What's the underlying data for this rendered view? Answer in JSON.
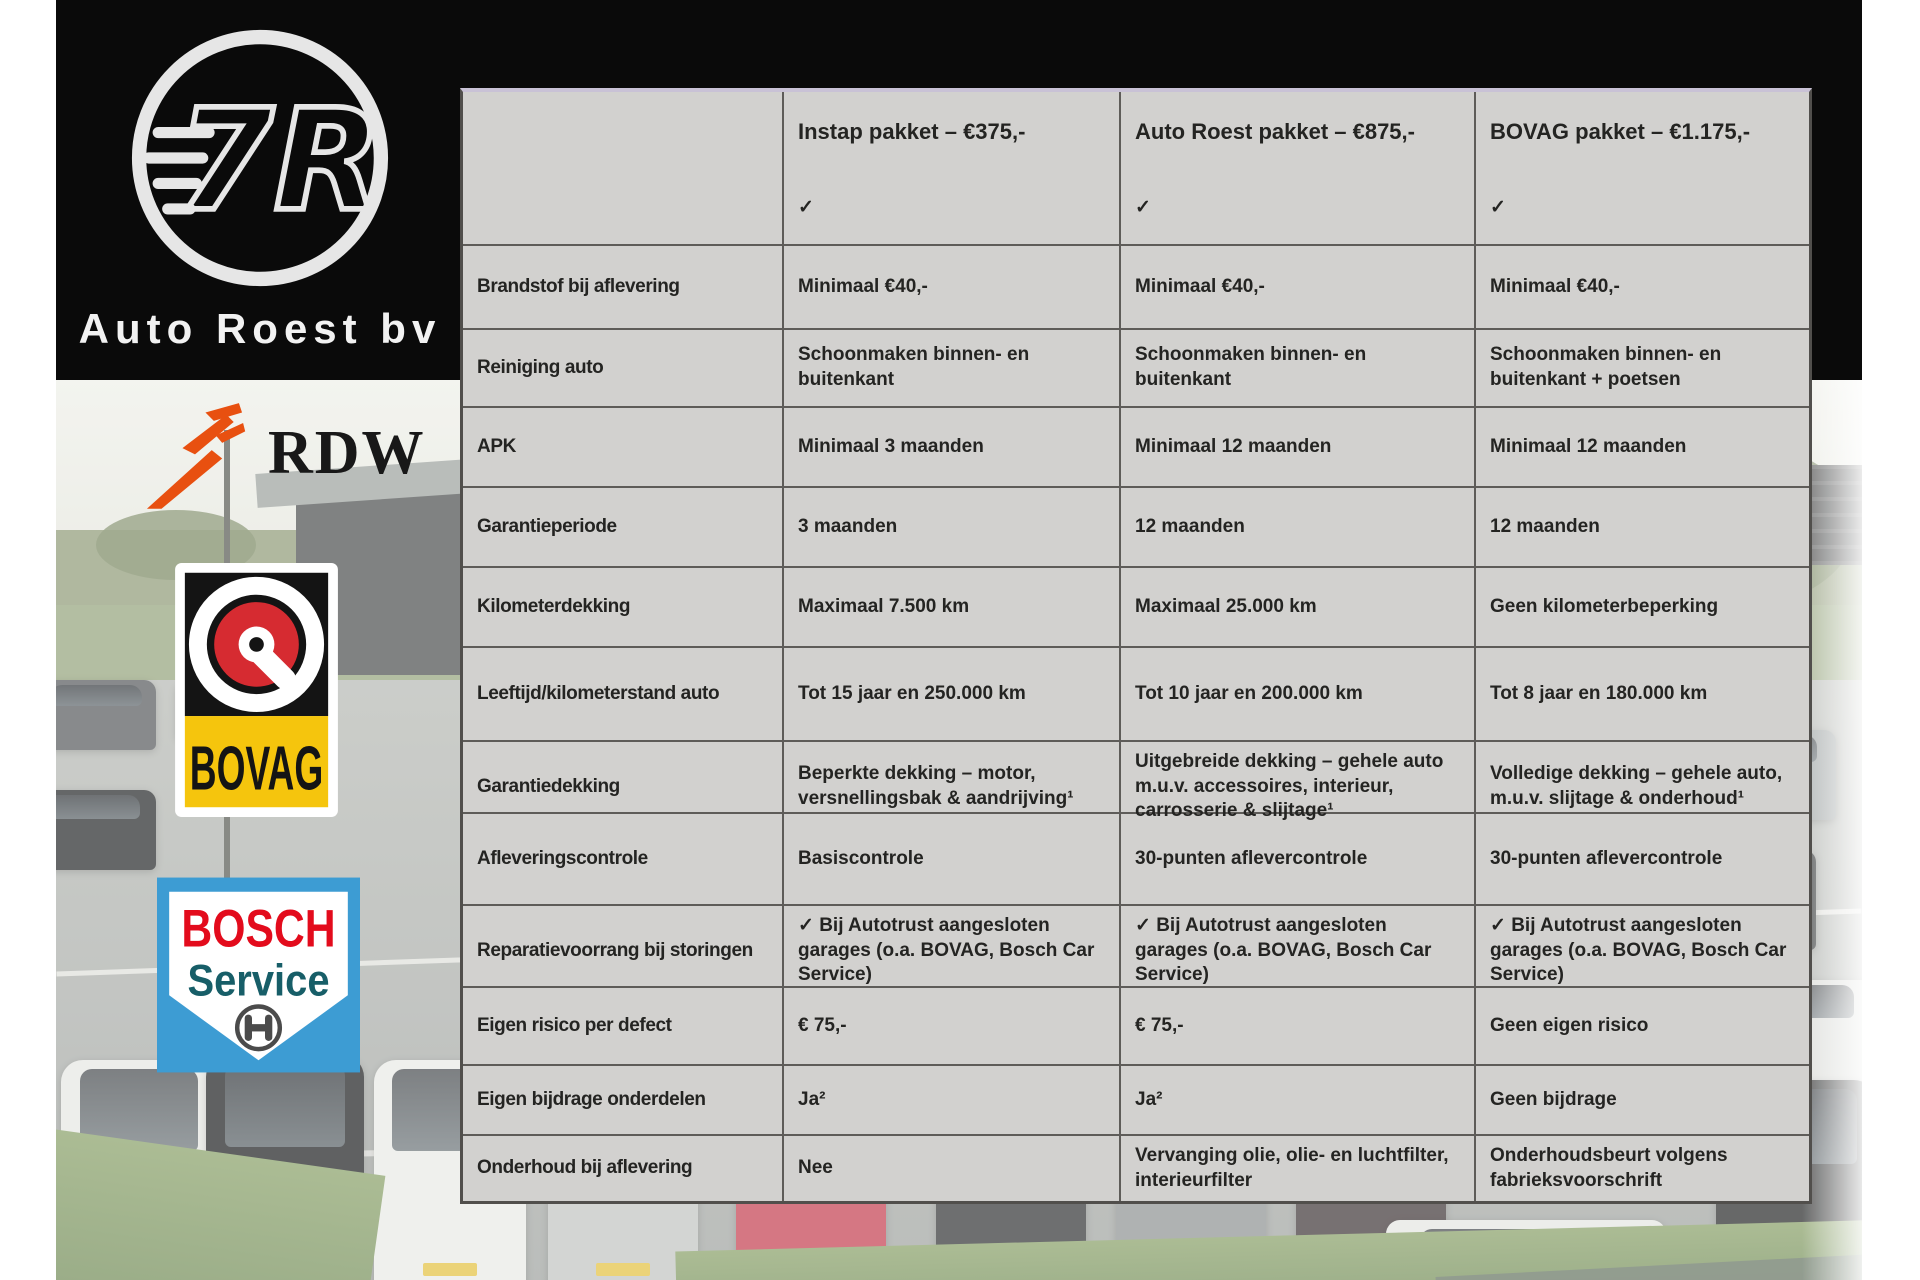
{
  "brand": {
    "name": "Auto Roest bv",
    "monogram": "7R"
  },
  "logos": {
    "rdw": {
      "text": "RDW",
      "orange": "#e85010"
    },
    "bovag": {
      "text": "BOVAG",
      "yellow": "#f5c50d",
      "red": "#d62b31"
    },
    "bosch": {
      "line1": "BOSCH",
      "line2": "Service",
      "red": "#e30b1c",
      "blue": "#3d9cd3",
      "teal": "#175e68"
    }
  },
  "colors": {
    "table_bg": "#d2d1cf",
    "table_border": "#5e5c59",
    "band": "#0a0a0a"
  },
  "table": {
    "columns": [
      "",
      "Instap pakket – €375,-",
      "Auto Roest pakket – €875,-",
      "BOVAG pakket – €1.175,-"
    ],
    "rows": [
      {
        "label": "",
        "values": [
          "✓",
          "✓",
          "✓"
        ]
      },
      {
        "label": "Brandstof bij aflevering",
        "values": [
          "Minimaal €40,-",
          "Minimaal €40,-",
          "Minimaal €40,-"
        ]
      },
      {
        "label": "Reiniging auto",
        "values": [
          "Schoonmaken binnen- en buitenkant",
          "Schoonmaken binnen- en buitenkant",
          "Schoonmaken binnen- en buitenkant + poetsen"
        ]
      },
      {
        "label": "APK",
        "values": [
          "Minimaal 3 maanden",
          "Minimaal 12 maanden",
          "Minimaal 12 maanden"
        ]
      },
      {
        "label": "Garantieperiode",
        "values": [
          "3 maanden",
          "12 maanden",
          "12 maanden"
        ]
      },
      {
        "label": "Kilometerdekking",
        "values": [
          "Maximaal 7.500 km",
          "Maximaal 25.000 km",
          "Geen kilometerbeperking"
        ]
      },
      {
        "label": "Leeftijd/kilometerstand auto",
        "values": [
          "Tot 15 jaar en 250.000 km",
          "Tot 10 jaar en 200.000 km",
          "Tot 8 jaar en 180.000 km"
        ]
      },
      {
        "label": "Garantiedekking",
        "values": [
          "Beperkte dekking – motor, versnellingsbak & aandrijving¹",
          "Uitgebreide dekking – gehele auto m.u.v. accessoires, interieur, carrosserie & slijtage¹",
          "Volledige dekking – gehele auto, m.u.v. slijtage & onderhoud¹"
        ]
      },
      {
        "label": "Afleveringscontrole",
        "values": [
          "Basiscontrole",
          "30-punten aflevercontrole",
          "30-punten aflevercontrole"
        ]
      },
      {
        "label": "Reparatievoorrang bij storingen",
        "values": [
          "✓ Bij Autotrust aangesloten garages (o.a. BOVAG, Bosch Car Service)",
          "✓ Bij Autotrust aangesloten garages (o.a. BOVAG, Bosch Car Service)",
          "✓ Bij Autotrust aangesloten garages (o.a. BOVAG, Bosch Car Service)"
        ]
      },
      {
        "label": "Eigen risico per defect",
        "values": [
          "€ 75,-",
          "€ 75,-",
          "Geen eigen risico"
        ]
      },
      {
        "label": "Eigen bijdrage onderdelen",
        "values": [
          "Ja²",
          "Ja²",
          "Geen bijdrage"
        ]
      },
      {
        "label": "Onderhoud bij aflevering",
        "values": [
          "Nee",
          "Vervanging olie, olie- en luchtfilter, interieurfilter",
          "Onderhoudsbeurt volgens fabrieksvoorschrift"
        ]
      }
    ]
  }
}
